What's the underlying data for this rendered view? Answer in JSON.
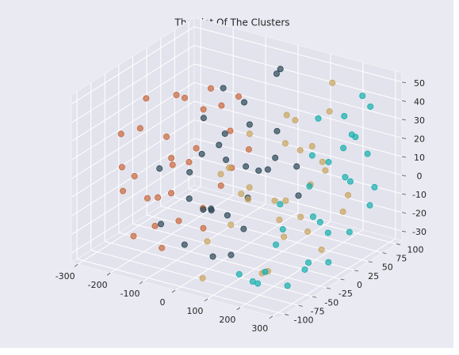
{
  "chart_data": {
    "type": "scatter3d",
    "title": "The Plot Of The Clusters",
    "xlim": [
      -320,
      320
    ],
    "ylim": [
      -110,
      110
    ],
    "zlim": [
      -35,
      55
    ],
    "xticks": [
      -300,
      -200,
      -100,
      0,
      100,
      200,
      300
    ],
    "yticks": [
      -100,
      -75,
      -50,
      -25,
      0,
      25,
      50,
      75,
      100
    ],
    "zticks": [
      -30,
      -20,
      -10,
      0,
      10,
      20,
      30,
      40,
      50
    ],
    "grid": true,
    "series": [
      {
        "color": "#c8683c",
        "points": [
          [
            -250,
            -60,
            10
          ],
          [
            -220,
            20,
            35
          ],
          [
            -180,
            -80,
            -20
          ],
          [
            -270,
            40,
            -5
          ],
          [
            -150,
            60,
            25
          ],
          [
            -200,
            -30,
            -25
          ],
          [
            -120,
            -90,
            5
          ],
          [
            -240,
            80,
            15
          ],
          [
            -160,
            0,
            40
          ],
          [
            -100,
            30,
            -10
          ],
          [
            -280,
            -10,
            20
          ],
          [
            -190,
            50,
            -30
          ],
          [
            -130,
            -50,
            30
          ],
          [
            -230,
            -70,
            0
          ],
          [
            -170,
            90,
            -15
          ],
          [
            -90,
            -20,
            20
          ],
          [
            -260,
            10,
            -20
          ],
          [
            -140,
            70,
            10
          ],
          [
            -210,
            -40,
            45
          ],
          [
            -110,
            -70,
            -25
          ],
          [
            -250,
            60,
            -10
          ],
          [
            -180,
            -10,
            5
          ],
          [
            -80,
            50,
            35
          ],
          [
            -230,
            30,
            -35
          ],
          [
            -150,
            -30,
            -5
          ],
          [
            -200,
            70,
            30
          ],
          [
            -120,
            10,
            -30
          ],
          [
            -270,
            -50,
            25
          ],
          [
            -160,
            -90,
            15
          ],
          [
            -100,
            80,
            0
          ]
        ]
      },
      {
        "color": "#2c4756",
        "points": [
          [
            -100,
            -80,
            20
          ],
          [
            -50,
            -30,
            40
          ],
          [
            0,
            20,
            -10
          ],
          [
            -80,
            60,
            30
          ],
          [
            30,
            -60,
            -25
          ],
          [
            -20,
            90,
            45
          ],
          [
            50,
            40,
            10
          ],
          [
            -120,
            10,
            -20
          ],
          [
            -60,
            -50,
            0
          ],
          [
            10,
            -90,
            25
          ],
          [
            70,
            70,
            -15
          ],
          [
            -30,
            30,
            -30
          ],
          [
            -90,
            -10,
            15
          ],
          [
            40,
            0,
            35
          ],
          [
            -10,
            -40,
            -5
          ],
          [
            80,
            -30,
            20
          ],
          [
            -70,
            80,
            -10
          ],
          [
            20,
            60,
            50
          ],
          [
            -40,
            -70,
            -20
          ],
          [
            60,
            -80,
            5
          ],
          [
            -110,
            40,
            40
          ],
          [
            0,
            -10,
            -35
          ],
          [
            90,
            20,
            30
          ],
          [
            -50,
            10,
            10
          ],
          [
            30,
            90,
            -5
          ],
          [
            -20,
            -20,
            25
          ],
          [
            -130,
            -60,
            -15
          ],
          [
            50,
            -50,
            40
          ],
          [
            -80,
            30,
            -25
          ],
          [
            10,
            50,
            0
          ]
        ]
      },
      {
        "color": "#c9a55e",
        "points": [
          [
            50,
            -90,
            -30
          ],
          [
            100,
            -50,
            10
          ],
          [
            150,
            0,
            30
          ],
          [
            200,
            50,
            40
          ],
          [
            80,
            30,
            -20
          ],
          [
            120,
            -80,
            0
          ],
          [
            180,
            -20,
            -15
          ],
          [
            230,
            20,
            20
          ],
          [
            60,
            70,
            25
          ],
          [
            140,
            90,
            45
          ],
          [
            200,
            -60,
            -25
          ],
          [
            100,
            10,
            -5
          ],
          [
            170,
            60,
            5
          ],
          [
            20,
            -40,
            15
          ],
          [
            250,
            -10,
            35
          ],
          [
            130,
            -30,
            -35
          ],
          [
            90,
            80,
            -10
          ],
          [
            210,
            30,
            -30
          ],
          [
            40,
            0,
            30
          ],
          [
            160,
            -70,
            20
          ],
          [
            110,
            50,
            15
          ],
          [
            190,
            80,
            -20
          ],
          [
            70,
            -20,
            0
          ],
          [
            220,
            -40,
            10
          ],
          [
            150,
            40,
            -25
          ],
          [
            30,
            -70,
            -15
          ],
          [
            120,
            20,
            40
          ],
          [
            240,
            60,
            -5
          ],
          [
            80,
            -60,
            25
          ],
          [
            180,
            10,
            -10
          ]
        ]
      },
      {
        "color": "#16afac",
        "points": [
          [
            250,
            80,
            45
          ],
          [
            280,
            50,
            30
          ],
          [
            200,
            90,
            20
          ],
          [
            270,
            -20,
            0
          ],
          [
            230,
            30,
            -20
          ],
          [
            290,
            70,
            -10
          ],
          [
            180,
            60,
            10
          ],
          [
            260,
            -60,
            -30
          ],
          [
            220,
            -90,
            -25
          ],
          [
            300,
            20,
            15
          ],
          [
            240,
            100,
            35
          ],
          [
            190,
            -40,
            -15
          ],
          [
            280,
            -80,
            5
          ],
          [
            210,
            0,
            -35
          ],
          [
            260,
            40,
            25
          ],
          [
            170,
            -70,
            -30
          ],
          [
            290,
            -40,
            -20
          ],
          [
            230,
            70,
            0
          ],
          [
            250,
            -10,
            30
          ],
          [
            200,
            30,
            40
          ],
          [
            270,
            90,
            -5
          ],
          [
            220,
            -50,
            10
          ],
          [
            300,
            -10,
            -25
          ],
          [
            180,
            -100,
            -20
          ],
          [
            240,
            10,
            -10
          ],
          [
            280,
            30,
            45
          ],
          [
            210,
            80,
            -30
          ],
          [
            260,
            -100,
            -15
          ],
          [
            300,
            60,
            20
          ],
          [
            190,
            20,
            5
          ]
        ]
      }
    ]
  }
}
